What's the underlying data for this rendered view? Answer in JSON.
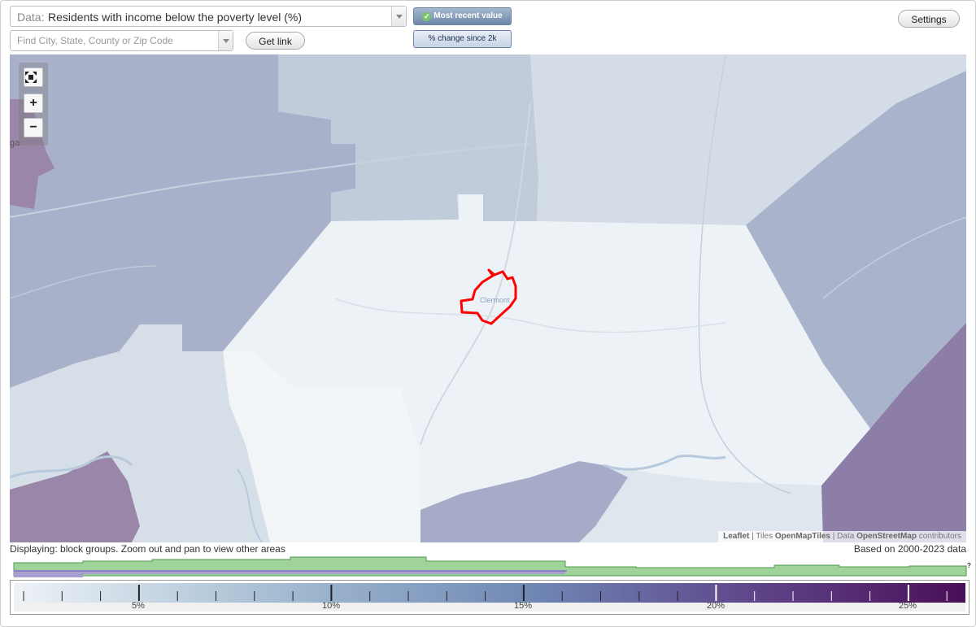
{
  "header": {
    "data_prefix": "Data:",
    "data_value": "Residents with income below the poverty level (%)",
    "search_placeholder": "Find City, State, County or Zip Code",
    "get_link_label": "Get link",
    "most_recent_label": "Most recent value",
    "change_label": "% change since 2k",
    "settings_label": "Settings"
  },
  "map": {
    "city_label": "Clermont",
    "edge_label": "ga",
    "attribution": {
      "leaflet": "Leaflet",
      "sep1": " | Tiles ",
      "tiles": "OpenMapTiles",
      "sep2": " | Data ",
      "data": "OpenStreetMap",
      "contributors": " contributors"
    },
    "highlight_color": "#ff0000"
  },
  "footer": {
    "displaying": "Displaying: block groups. Zoom out and pan to view other areas",
    "based_on": "Based on 2000-2023 data",
    "histogram_marker": "?",
    "legend_labels": [
      "5%",
      "10%",
      "15%",
      "20%",
      "25%"
    ],
    "legend_colors": [
      "#eef3f7",
      "#9fb8cf",
      "#6f86b4",
      "#5d3f86",
      "#4a0f56"
    ]
  }
}
